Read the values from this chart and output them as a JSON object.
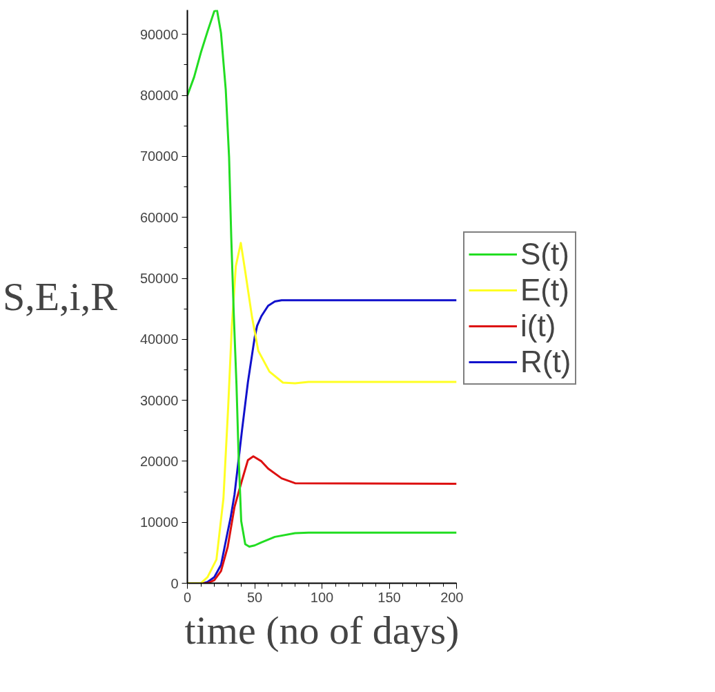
{
  "chart_data": {
    "type": "line",
    "xlabel": "time (no of days)",
    "ylabel": "S,E,i,R",
    "xlim": [
      0,
      200
    ],
    "ylim": [
      0,
      94000
    ],
    "xticks": [
      0,
      50,
      100,
      150,
      200
    ],
    "yticks": [
      0,
      10000,
      20000,
      30000,
      40000,
      50000,
      60000,
      70000,
      80000,
      90000
    ],
    "grid": false,
    "legend": "right",
    "marker": "none",
    "line_style": "solid",
    "series": [
      {
        "name": "S(t)",
        "color": "#22dd22",
        "x": [
          0,
          5,
          10,
          15,
          20,
          22,
          25,
          28.5,
          31,
          32.6,
          34.5,
          36.5,
          38,
          40,
          43,
          46,
          50,
          55,
          65,
          80,
          90,
          200
        ],
        "values": [
          80000,
          83000,
          87000,
          90500,
          93800,
          94000,
          90200,
          81000,
          69800,
          56700,
          44000,
          32500,
          21300,
          10200,
          6400,
          6000,
          6200,
          6700,
          7600,
          8200,
          8300,
          8300
        ]
      },
      {
        "name": "E(t)",
        "color": "#ffff22",
        "x": [
          0,
          10,
          15,
          21.6,
          26.8,
          30.3,
          33,
          36,
          39.7,
          43,
          48,
          52.7,
          61,
          71,
          80,
          90,
          200
        ],
        "values": [
          0,
          0,
          1000,
          3900,
          13900,
          28800,
          42000,
          52000,
          55800,
          51100,
          43700,
          38100,
          34700,
          32900,
          32800,
          33000,
          33000
        ]
      },
      {
        "name": "i(t)",
        "color": "#dd1111",
        "x": [
          0,
          15,
          20,
          25,
          30,
          35,
          40.6,
          45,
          49,
          55,
          60,
          70,
          80,
          200
        ],
        "values": [
          0,
          0,
          500,
          2000,
          6000,
          12500,
          16900,
          20200,
          20800,
          20000,
          18800,
          17200,
          16400,
          16300
        ]
      },
      {
        "name": "R(t)",
        "color": "#1111cc",
        "x": [
          5,
          12,
          15,
          20,
          25,
          30,
          32,
          35,
          40.6,
          45,
          50,
          51.8,
          55,
          60,
          65,
          70,
          200
        ],
        "values": [
          0,
          0,
          200,
          1000,
          3000,
          8500,
          10600,
          14500,
          25100,
          33000,
          40300,
          42200,
          43800,
          45500,
          46200,
          46400,
          46400
        ]
      }
    ]
  }
}
